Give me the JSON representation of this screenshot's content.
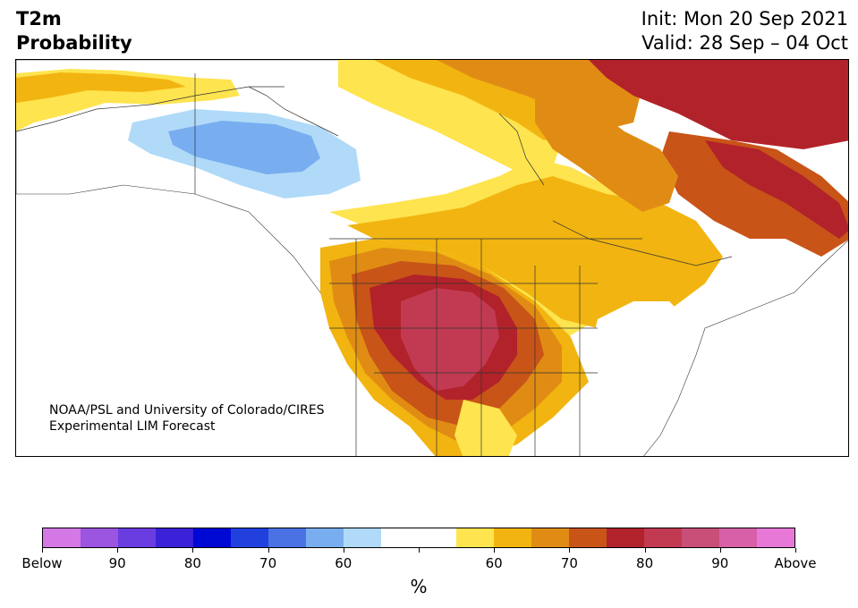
{
  "title": {
    "line1": "T2m",
    "line2": "Probability",
    "init": "Init: Mon 20 Sep 2021",
    "valid": "Valid: 28 Sep – 04 Oct"
  },
  "credit": {
    "line1": "NOAA/PSL and University of Colorado/CIRES",
    "line2": "Experimental LIM Forecast"
  },
  "colorbar": {
    "colors": [
      "#d478e6",
      "#9b55e0",
      "#6a3de0",
      "#3a22d8",
      "#0008d4",
      "#2240de",
      "#4a72e4",
      "#78aef0",
      "#b0daf8",
      "#ffffff",
      "#ffffff",
      "#fee44e",
      "#f2b410",
      "#e08c14",
      "#c85418",
      "#b2222a",
      "#c23a52",
      "#c85078",
      "#d860a8",
      "#e878d8"
    ],
    "labels": [
      "Below",
      "90",
      "80",
      "70",
      "60",
      "60",
      "70",
      "80",
      "90",
      "Above"
    ],
    "unit": "%"
  },
  "map_colors": {
    "ocean": "#ffffff",
    "warm_1": "#fee44e",
    "warm_2": "#f2b410",
    "warm_3": "#e08c14",
    "warm_4": "#c85418",
    "warm_5": "#b2222a",
    "warm_6": "#c23a52",
    "cool_1": "#b0daf8",
    "cool_2": "#78aef0"
  }
}
